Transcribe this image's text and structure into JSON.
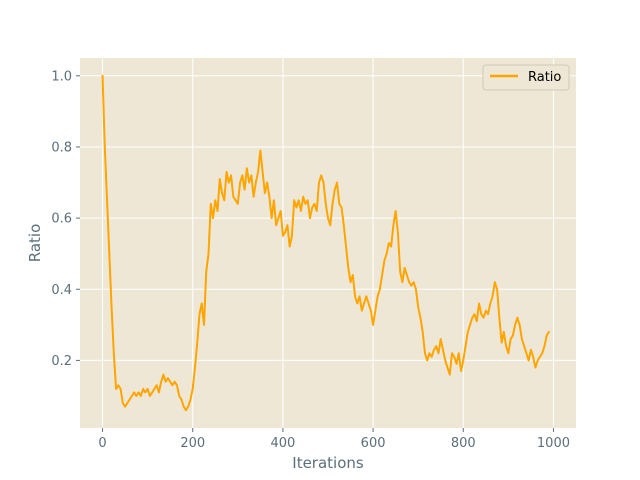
{
  "chart_data": {
    "type": "line",
    "title": "",
    "xlabel": "Iterations",
    "ylabel": "Ratio",
    "xlim": [
      -50,
      1050
    ],
    "ylim": [
      0.01,
      1.05
    ],
    "xticks": [
      0,
      200,
      400,
      600,
      800,
      1000
    ],
    "yticks": [
      0.2,
      0.4,
      0.6,
      0.8,
      1.0
    ],
    "xtick_labels": [
      "0",
      "200",
      "400",
      "600",
      "800",
      "1000"
    ],
    "ytick_labels": [
      "0.2",
      "0.4",
      "0.6",
      "0.8",
      "1.0"
    ],
    "grid": true,
    "legend": {
      "position": "top-right",
      "entries": [
        "Ratio"
      ]
    },
    "colors": {
      "background": "#eee7d5",
      "grid": "#ffffff",
      "series": "#ffa500",
      "axis_text": "#5c6f7a"
    },
    "series": [
      {
        "name": "Ratio",
        "points": [
          [
            0,
            1.0
          ],
          [
            5,
            0.8
          ],
          [
            10,
            0.65
          ],
          [
            15,
            0.5
          ],
          [
            20,
            0.35
          ],
          [
            25,
            0.22
          ],
          [
            30,
            0.12
          ],
          [
            35,
            0.13
          ],
          [
            40,
            0.12
          ],
          [
            45,
            0.08
          ],
          [
            50,
            0.07
          ],
          [
            55,
            0.08
          ],
          [
            60,
            0.09
          ],
          [
            65,
            0.1
          ],
          [
            70,
            0.11
          ],
          [
            75,
            0.1
          ],
          [
            80,
            0.11
          ],
          [
            85,
            0.1
          ],
          [
            90,
            0.12
          ],
          [
            95,
            0.11
          ],
          [
            100,
            0.12
          ],
          [
            105,
            0.1
          ],
          [
            110,
            0.11
          ],
          [
            115,
            0.12
          ],
          [
            120,
            0.13
          ],
          [
            125,
            0.11
          ],
          [
            130,
            0.14
          ],
          [
            135,
            0.16
          ],
          [
            140,
            0.14
          ],
          [
            145,
            0.15
          ],
          [
            150,
            0.14
          ],
          [
            155,
            0.13
          ],
          [
            160,
            0.14
          ],
          [
            165,
            0.13
          ],
          [
            170,
            0.1
          ],
          [
            175,
            0.09
          ],
          [
            180,
            0.07
          ],
          [
            185,
            0.06
          ],
          [
            190,
            0.07
          ],
          [
            195,
            0.09
          ],
          [
            200,
            0.12
          ],
          [
            205,
            0.18
          ],
          [
            210,
            0.25
          ],
          [
            215,
            0.33
          ],
          [
            220,
            0.36
          ],
          [
            225,
            0.3
          ],
          [
            230,
            0.45
          ],
          [
            235,
            0.5
          ],
          [
            240,
            0.64
          ],
          [
            245,
            0.6
          ],
          [
            250,
            0.65
          ],
          [
            255,
            0.62
          ],
          [
            260,
            0.71
          ],
          [
            265,
            0.67
          ],
          [
            270,
            0.65
          ],
          [
            275,
            0.73
          ],
          [
            280,
            0.7
          ],
          [
            285,
            0.72
          ],
          [
            290,
            0.66
          ],
          [
            295,
            0.65
          ],
          [
            300,
            0.64
          ],
          [
            305,
            0.7
          ],
          [
            310,
            0.72
          ],
          [
            315,
            0.68
          ],
          [
            320,
            0.74
          ],
          [
            325,
            0.7
          ],
          [
            330,
            0.72
          ],
          [
            335,
            0.66
          ],
          [
            340,
            0.7
          ],
          [
            345,
            0.73
          ],
          [
            350,
            0.79
          ],
          [
            355,
            0.73
          ],
          [
            360,
            0.67
          ],
          [
            365,
            0.7
          ],
          [
            370,
            0.66
          ],
          [
            375,
            0.6
          ],
          [
            380,
            0.65
          ],
          [
            385,
            0.58
          ],
          [
            390,
            0.6
          ],
          [
            395,
            0.62
          ],
          [
            400,
            0.55
          ],
          [
            405,
            0.56
          ],
          [
            410,
            0.58
          ],
          [
            415,
            0.52
          ],
          [
            420,
            0.55
          ],
          [
            425,
            0.65
          ],
          [
            430,
            0.63
          ],
          [
            435,
            0.65
          ],
          [
            440,
            0.62
          ],
          [
            445,
            0.66
          ],
          [
            450,
            0.64
          ],
          [
            455,
            0.65
          ],
          [
            460,
            0.6
          ],
          [
            465,
            0.63
          ],
          [
            470,
            0.64
          ],
          [
            475,
            0.62
          ],
          [
            480,
            0.7
          ],
          [
            485,
            0.72
          ],
          [
            490,
            0.7
          ],
          [
            495,
            0.64
          ],
          [
            500,
            0.6
          ],
          [
            505,
            0.58
          ],
          [
            510,
            0.64
          ],
          [
            515,
            0.68
          ],
          [
            520,
            0.7
          ],
          [
            525,
            0.64
          ],
          [
            530,
            0.63
          ],
          [
            535,
            0.58
          ],
          [
            540,
            0.52
          ],
          [
            545,
            0.46
          ],
          [
            550,
            0.42
          ],
          [
            555,
            0.44
          ],
          [
            560,
            0.38
          ],
          [
            565,
            0.36
          ],
          [
            570,
            0.38
          ],
          [
            575,
            0.34
          ],
          [
            580,
            0.36
          ],
          [
            585,
            0.38
          ],
          [
            590,
            0.36
          ],
          [
            595,
            0.34
          ],
          [
            600,
            0.3
          ],
          [
            605,
            0.34
          ],
          [
            610,
            0.38
          ],
          [
            615,
            0.4
          ],
          [
            620,
            0.44
          ],
          [
            625,
            0.48
          ],
          [
            630,
            0.5
          ],
          [
            635,
            0.53
          ],
          [
            640,
            0.52
          ],
          [
            645,
            0.58
          ],
          [
            650,
            0.62
          ],
          [
            655,
            0.56
          ],
          [
            660,
            0.45
          ],
          [
            665,
            0.42
          ],
          [
            670,
            0.46
          ],
          [
            675,
            0.44
          ],
          [
            680,
            0.42
          ],
          [
            685,
            0.41
          ],
          [
            690,
            0.42
          ],
          [
            695,
            0.4
          ],
          [
            700,
            0.35
          ],
          [
            705,
            0.32
          ],
          [
            710,
            0.28
          ],
          [
            715,
            0.22
          ],
          [
            720,
            0.2
          ],
          [
            725,
            0.22
          ],
          [
            730,
            0.21
          ],
          [
            735,
            0.23
          ],
          [
            740,
            0.24
          ],
          [
            745,
            0.22
          ],
          [
            750,
            0.26
          ],
          [
            755,
            0.23
          ],
          [
            760,
            0.2
          ],
          [
            765,
            0.18
          ],
          [
            770,
            0.16
          ],
          [
            775,
            0.22
          ],
          [
            780,
            0.21
          ],
          [
            785,
            0.19
          ],
          [
            790,
            0.22
          ],
          [
            795,
            0.17
          ],
          [
            800,
            0.2
          ],
          [
            805,
            0.24
          ],
          [
            810,
            0.28
          ],
          [
            815,
            0.3
          ],
          [
            820,
            0.32
          ],
          [
            825,
            0.33
          ],
          [
            830,
            0.31
          ],
          [
            835,
            0.36
          ],
          [
            840,
            0.33
          ],
          [
            845,
            0.32
          ],
          [
            850,
            0.34
          ],
          [
            855,
            0.33
          ],
          [
            860,
            0.36
          ],
          [
            865,
            0.38
          ],
          [
            870,
            0.42
          ],
          [
            875,
            0.4
          ],
          [
            880,
            0.32
          ],
          [
            885,
            0.25
          ],
          [
            890,
            0.28
          ],
          [
            895,
            0.24
          ],
          [
            900,
            0.22
          ],
          [
            905,
            0.26
          ],
          [
            910,
            0.27
          ],
          [
            915,
            0.3
          ],
          [
            920,
            0.32
          ],
          [
            925,
            0.3
          ],
          [
            930,
            0.26
          ],
          [
            935,
            0.24
          ],
          [
            940,
            0.22
          ],
          [
            945,
            0.2
          ],
          [
            950,
            0.23
          ],
          [
            955,
            0.21
          ],
          [
            960,
            0.18
          ],
          [
            965,
            0.2
          ],
          [
            970,
            0.21
          ],
          [
            975,
            0.22
          ],
          [
            980,
            0.24
          ],
          [
            985,
            0.27
          ],
          [
            990,
            0.28
          ]
        ]
      }
    ]
  }
}
